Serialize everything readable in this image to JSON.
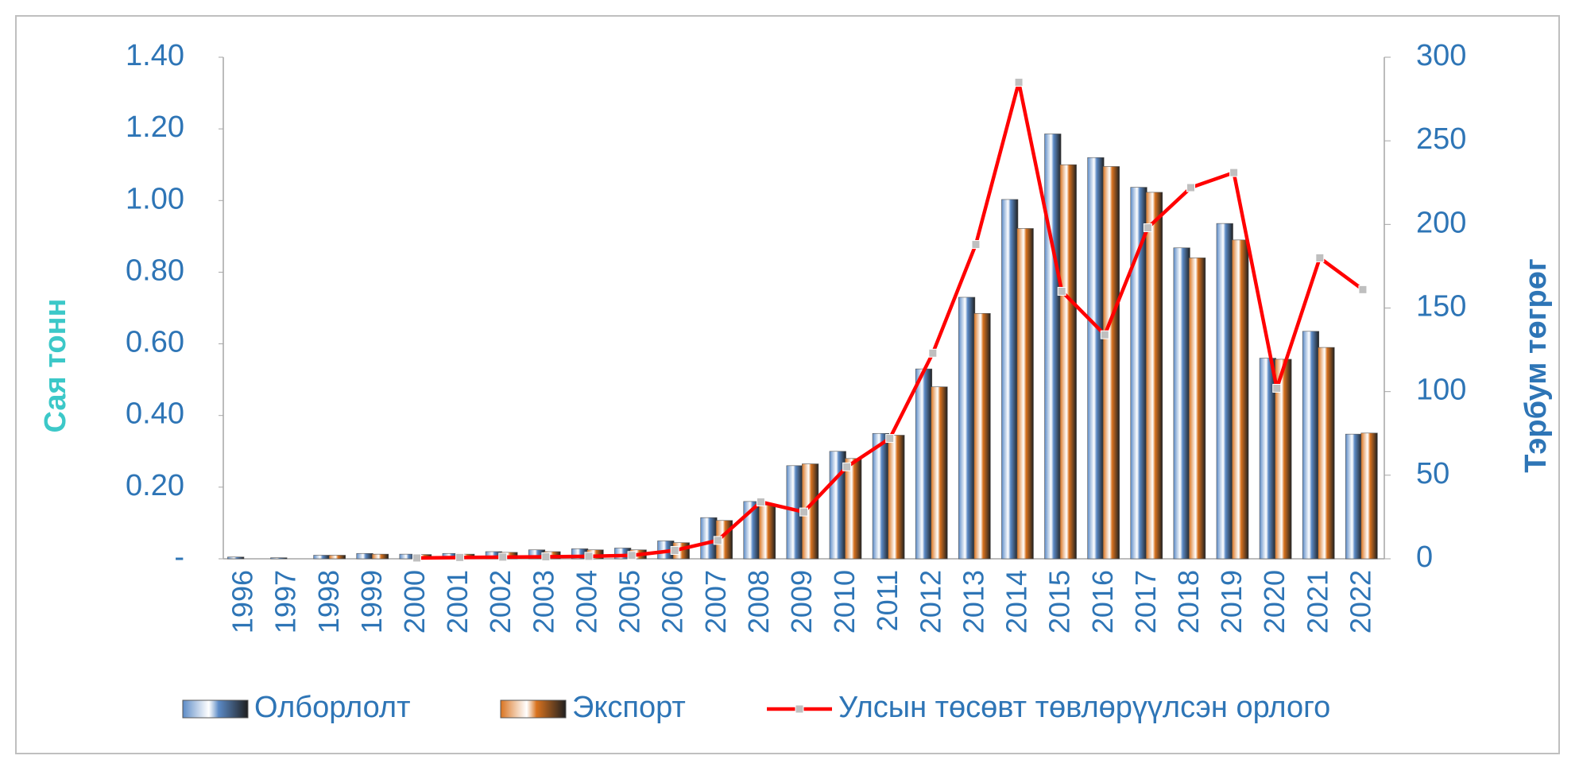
{
  "chart_data": {
    "type": "bar-line",
    "categories": [
      "1996",
      "1997",
      "1998",
      "1999",
      "2000",
      "2001",
      "2002",
      "2003",
      "2004",
      "2005",
      "2006",
      "2007",
      "2008",
      "2009",
      "2010",
      "2011",
      "2012",
      "2013",
      "2014",
      "2015",
      "2016",
      "2017",
      "2018",
      "2019",
      "2020",
      "2021",
      "2022"
    ],
    "ylabel": "Сая тонн",
    "y2label": "Тэрбум төгрөг",
    "ylim": [
      0,
      1.4
    ],
    "yticks": [
      {
        "value": 0,
        "label": "-"
      },
      {
        "value": 0.2,
        "label": "0.20"
      },
      {
        "value": 0.4,
        "label": "0.40"
      },
      {
        "value": 0.6,
        "label": "0.60"
      },
      {
        "value": 0.8,
        "label": "0.80"
      },
      {
        "value": 1.0,
        "label": "1.00"
      },
      {
        "value": 1.2,
        "label": "1.20"
      },
      {
        "value": 1.4,
        "label": "1.40"
      }
    ],
    "y2lim": [
      0,
      300
    ],
    "y2ticks": [
      0,
      50,
      100,
      150,
      200,
      250,
      300
    ],
    "series": [
      {
        "name": "Олборлолт",
        "type": "bar",
        "color": "#5b8ac6",
        "values": [
          0.005,
          0.003,
          0.01,
          0.015,
          0.013,
          0.015,
          0.02,
          0.025,
          0.028,
          0.03,
          0.05,
          0.115,
          0.16,
          0.26,
          0.3,
          0.35,
          0.53,
          0.73,
          1.003,
          1.186,
          1.12,
          1.037,
          0.868,
          0.936,
          0.56,
          0.635,
          0.348
        ]
      },
      {
        "name": "Экспорт",
        "type": "bar",
        "color": "#d9731f",
        "values": [
          0,
          0,
          0.01,
          0.013,
          0.012,
          0.013,
          0.018,
          0.02,
          0.025,
          0.025,
          0.045,
          0.107,
          0.15,
          0.265,
          0.28,
          0.345,
          0.48,
          0.685,
          0.922,
          1.1,
          1.095,
          1.023,
          0.84,
          0.89,
          0.557,
          0.59,
          0.351
        ]
      },
      {
        "name": "Улсын төсөвт төвлөрүүлсэн орлого",
        "type": "line",
        "axis": "y2",
        "color": "#ff0000",
        "values": [
          null,
          null,
          null,
          null,
          0.5,
          0.8,
          1,
          1.2,
          1.5,
          2,
          5,
          11,
          34,
          28,
          55,
          72,
          123,
          188,
          285,
          160,
          134,
          198,
          222,
          231,
          102,
          180,
          161
        ]
      }
    ]
  }
}
